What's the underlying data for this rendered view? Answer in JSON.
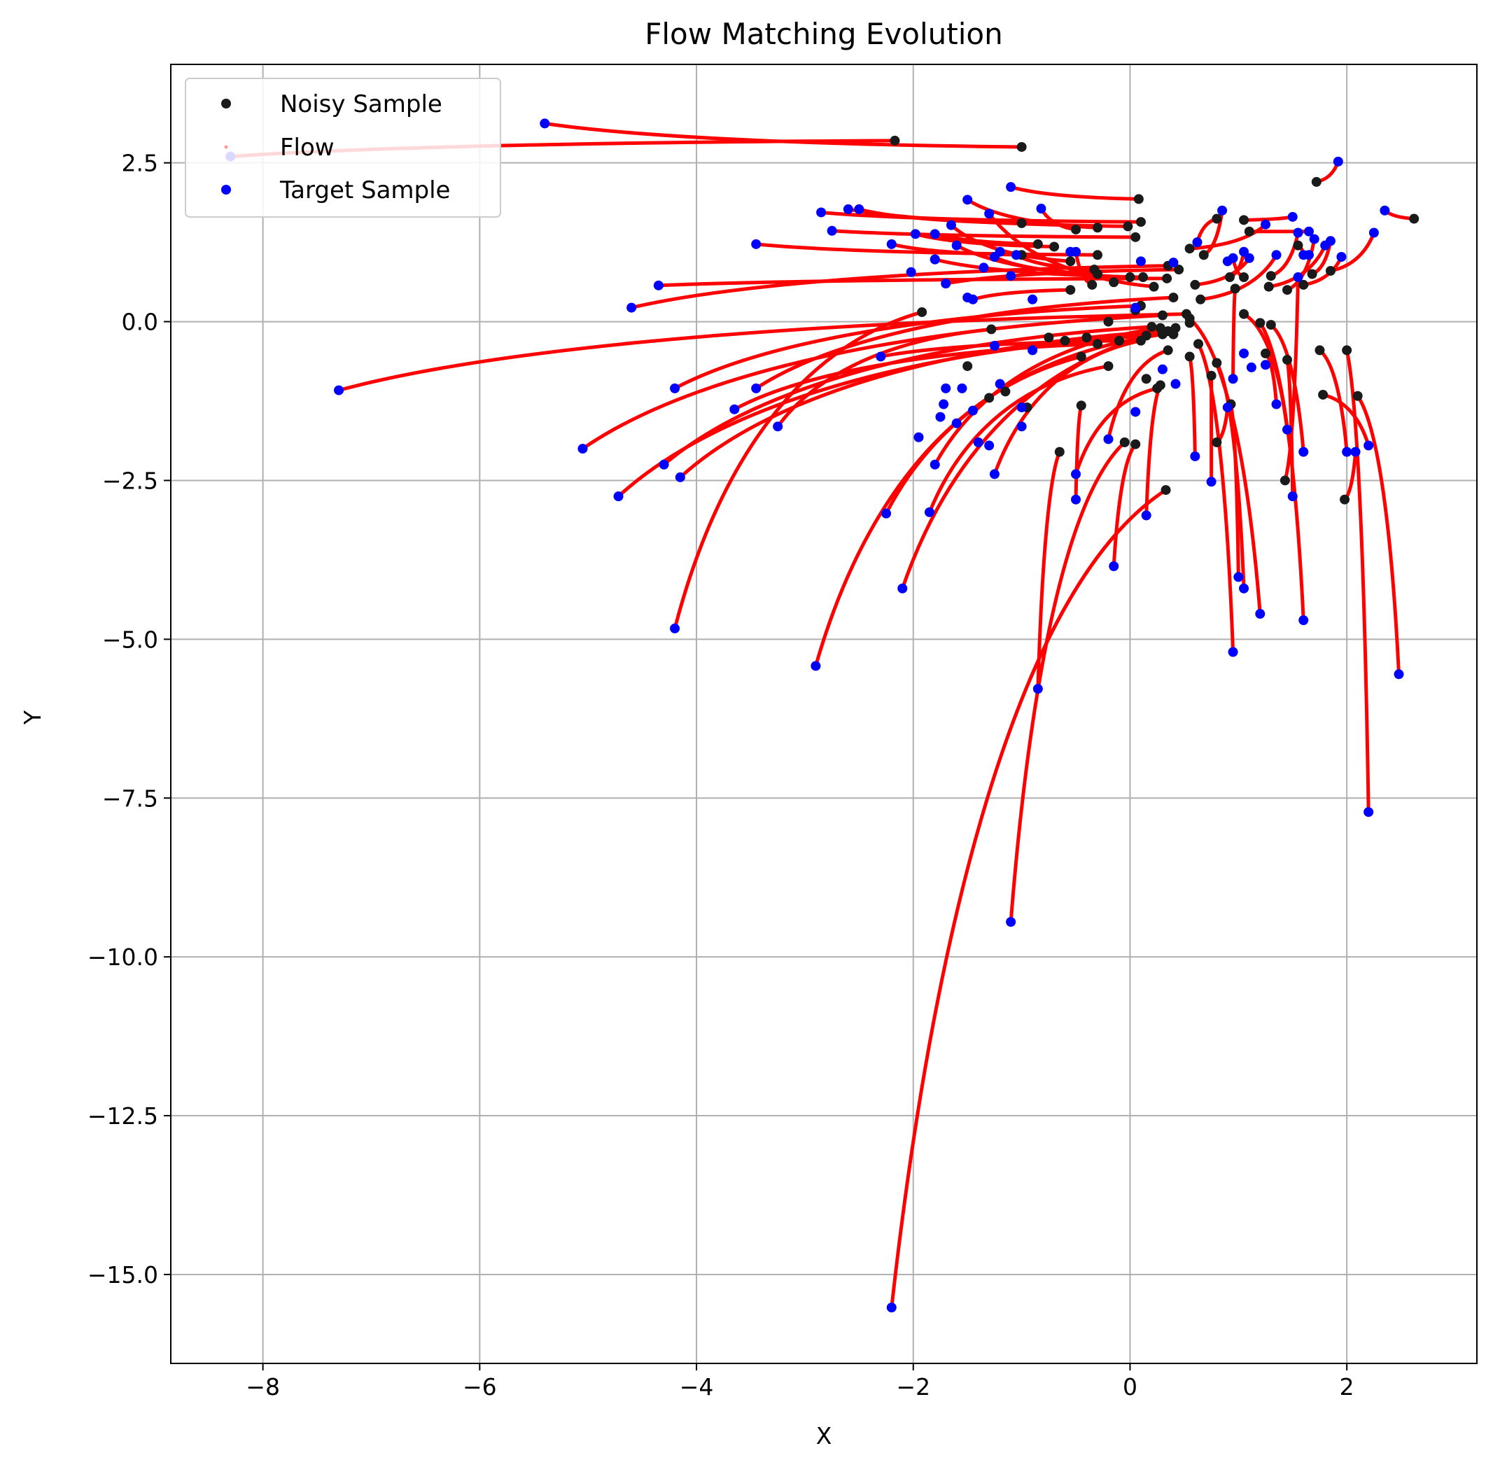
{
  "chart_data": {
    "type": "scatter",
    "title": "Flow Matching Evolution",
    "xlabel": "X",
    "ylabel": "Y",
    "xlim": [
      -8.85,
      3.2
    ],
    "ylim": [
      -16.4,
      4.05
    ],
    "xticks": [
      -8,
      -6,
      -4,
      -2,
      0,
      2
    ],
    "yticks": [
      2.5,
      0.0,
      -2.5,
      -5.0,
      -7.5,
      -10.0,
      -12.5,
      -15.0
    ],
    "xtick_labels": [
      "−8",
      "−6",
      "−4",
      "−2",
      "0",
      "2"
    ],
    "ytick_labels": [
      "2.5",
      "0.0",
      "−2.5",
      "−5.0",
      "−7.5",
      "−10.0",
      "−12.5",
      "−15.0"
    ],
    "grid": true,
    "legend": {
      "position": "top-left",
      "entries": [
        {
          "label": "Noisy Sample",
          "color": "#1a1a1a",
          "marker": "dot"
        },
        {
          "label": "Flow",
          "color": "#ff9999",
          "marker": "small-dot"
        },
        {
          "label": "Target Sample",
          "color": "#0000ff",
          "marker": "dot"
        }
      ]
    },
    "colors": {
      "noisy": "#1a1a1a",
      "flow": "#ff0000",
      "target": "#0000ff"
    },
    "flows": [
      {
        "start": [
          -2.17,
          2.85
        ],
        "end": [
          -8.3,
          2.6
        ]
      },
      {
        "start": [
          -1.0,
          2.75
        ],
        "end": [
          -5.4,
          3.12
        ]
      },
      {
        "start": [
          0.08,
          1.93
        ],
        "end": [
          -1.1,
          2.12
        ]
      },
      {
        "start": [
          0.1,
          1.57
        ],
        "end": [
          -2.85,
          1.72
        ]
      },
      {
        "start": [
          -0.02,
          1.5
        ],
        "end": [
          -2.6,
          1.77
        ]
      },
      {
        "start": [
          -1.0,
          1.55
        ],
        "end": [
          -2.5,
          1.77
        ]
      },
      {
        "start": [
          -0.3,
          1.48
        ],
        "end": [
          -1.5,
          1.92
        ]
      },
      {
        "start": [
          -0.5,
          1.45
        ],
        "end": [
          -0.82,
          1.78
        ]
      },
      {
        "start": [
          0.05,
          1.33
        ],
        "end": [
          -2.75,
          1.43
        ]
      },
      {
        "start": [
          -0.7,
          1.18
        ],
        "end": [
          -1.98,
          1.38
        ]
      },
      {
        "start": [
          -0.85,
          1.22
        ],
        "end": [
          -1.8,
          1.38
        ]
      },
      {
        "start": [
          -0.3,
          1.05
        ],
        "end": [
          -3.45,
          1.22
        ]
      },
      {
        "start": [
          -1.0,
          1.05
        ],
        "end": [
          -2.2,
          1.22
        ]
      },
      {
        "start": [
          -0.55,
          0.95
        ],
        "end": [
          -1.65,
          1.52
        ]
      },
      {
        "start": [
          -0.33,
          0.82
        ],
        "end": [
          -1.05,
          1.05
        ]
      },
      {
        "start": [
          -0.3,
          0.75
        ],
        "end": [
          -1.25,
          1.02
        ]
      },
      {
        "start": [
          0.0,
          0.7
        ],
        "end": [
          -1.6,
          1.2
        ]
      },
      {
        "start": [
          0.12,
          0.7
        ],
        "end": [
          -1.8,
          0.98
        ]
      },
      {
        "start": [
          0.22,
          0.55
        ],
        "end": [
          -1.3,
          1.7
        ]
      },
      {
        "start": [
          0.34,
          0.68
        ],
        "end": [
          -4.35,
          0.57
        ]
      },
      {
        "start": [
          0.35,
          0.88
        ],
        "end": [
          -4.6,
          0.22
        ]
      },
      {
        "start": [
          -0.35,
          0.58
        ],
        "end": [
          -0.5,
          1.1
        ]
      },
      {
        "start": [
          -0.55,
          0.5
        ],
        "end": [
          -1.45,
          0.35
        ]
      },
      {
        "start": [
          0.45,
          0.82
        ],
        "end": [
          -1.7,
          0.6
        ]
      },
      {
        "start": [
          0.52,
          0.12
        ],
        "end": [
          -7.3,
          -1.08
        ]
      },
      {
        "start": [
          -1.92,
          0.15
        ],
        "end": [
          -4.2,
          -4.83
        ]
      },
      {
        "start": [
          0.4,
          0.38
        ],
        "end": [
          -3.45,
          -1.05
        ]
      },
      {
        "start": [
          0.3,
          0.1
        ],
        "end": [
          -5.05,
          -2.0
        ]
      },
      {
        "start": [
          0.2,
          -0.08
        ],
        "end": [
          -4.3,
          -2.25
        ]
      },
      {
        "start": [
          0.15,
          -0.22
        ],
        "end": [
          -4.72,
          -2.75
        ]
      },
      {
        "start": [
          -0.3,
          -0.35
        ],
        "end": [
          -3.65,
          -1.38
        ]
      },
      {
        "start": [
          0.1,
          0.25
        ],
        "end": [
          -4.2,
          -1.05
        ]
      },
      {
        "start": [
          -0.1,
          -0.3
        ],
        "end": [
          -2.3,
          -0.55
        ]
      },
      {
        "start": [
          -1.28,
          -0.12
        ],
        "end": [
          -3.25,
          -1.65
        ]
      },
      {
        "start": [
          0.3,
          -0.15
        ],
        "end": [
          -4.15,
          -2.45
        ]
      },
      {
        "start": [
          -0.45,
          -0.55
        ],
        "end": [
          -2.9,
          -5.42
        ]
      },
      {
        "start": [
          0.3,
          -0.2
        ],
        "end": [
          -2.25,
          -3.02
        ]
      },
      {
        "start": [
          -0.2,
          -0.7
        ],
        "end": [
          -1.85,
          -3.0
        ]
      },
      {
        "start": [
          0.28,
          -0.1
        ],
        "end": [
          -1.8,
          -2.25
        ]
      },
      {
        "start": [
          0.1,
          -0.3
        ],
        "end": [
          -1.25,
          -2.4
        ]
      },
      {
        "start": [
          0.35,
          -0.15
        ],
        "end": [
          -2.1,
          -4.2
        ]
      },
      {
        "start": [
          -0.45,
          -1.32
        ],
        "end": [
          -0.5,
          -2.8
        ]
      },
      {
        "start": [
          -0.65,
          -2.05
        ],
        "end": [
          -0.85,
          -5.78
        ]
      },
      {
        "start": [
          -0.05,
          -1.9
        ],
        "end": [
          -1.1,
          -9.45
        ]
      },
      {
        "start": [
          0.33,
          -2.65
        ],
        "end": [
          -2.2,
          -15.52
        ]
      },
      {
        "start": [
          0.05,
          -1.93
        ],
        "end": [
          -0.15,
          -3.85
        ]
      },
      {
        "start": [
          0.28,
          -1.0
        ],
        "end": [
          0.15,
          -3.05
        ]
      },
      {
        "start": [
          0.25,
          -1.05
        ],
        "end": [
          -0.5,
          -2.4
        ]
      },
      {
        "start": [
          0.35,
          -0.45
        ],
        "end": [
          -0.2,
          -1.85
        ]
      },
      {
        "start": [
          0.55,
          -0.55
        ],
        "end": [
          0.6,
          -2.12
        ]
      },
      {
        "start": [
          0.63,
          -0.35
        ],
        "end": [
          0.95,
          -5.2
        ]
      },
      {
        "start": [
          0.55,
          0.05
        ],
        "end": [
          1.2,
          -4.6
        ]
      },
      {
        "start": [
          0.8,
          -0.65
        ],
        "end": [
          1.05,
          -4.2
        ]
      },
      {
        "start": [
          0.8,
          -1.9
        ],
        "end": [
          0.9,
          -1.35
        ]
      },
      {
        "start": [
          0.93,
          -1.3
        ],
        "end": [
          1.0,
          -4.02
        ]
      },
      {
        "start": [
          0.75,
          -0.85
        ],
        "end": [
          0.75,
          -2.52
        ]
      },
      {
        "start": [
          1.2,
          -0.02
        ],
        "end": [
          1.6,
          -4.7
        ]
      },
      {
        "start": [
          1.3,
          -0.05
        ],
        "end": [
          1.6,
          -2.05
        ]
      },
      {
        "start": [
          1.45,
          -0.6
        ],
        "end": [
          1.5,
          -2.75
        ]
      },
      {
        "start": [
          1.43,
          -2.5
        ],
        "end": [
          1.55,
          0.7
        ]
      },
      {
        "start": [
          2.0,
          -0.45
        ],
        "end": [
          2.2,
          -7.72
        ]
      },
      {
        "start": [
          2.1,
          -1.17
        ],
        "end": [
          2.48,
          -5.55
        ]
      },
      {
        "start": [
          1.75,
          -0.45
        ],
        "end": [
          2.0,
          -2.05
        ]
      },
      {
        "start": [
          1.78,
          -1.15
        ],
        "end": [
          2.2,
          -1.95
        ]
      },
      {
        "start": [
          1.98,
          -2.8
        ],
        "end": [
          2.08,
          -2.05
        ]
      },
      {
        "start": [
          1.05,
          0.12
        ],
        "end": [
          1.45,
          -1.7
        ]
      },
      {
        "start": [
          1.25,
          -0.5
        ],
        "end": [
          1.35,
          -1.3
        ]
      },
      {
        "start": [
          0.97,
          0.52
        ],
        "end": [
          0.95,
          -0.9
        ]
      },
      {
        "start": [
          2.62,
          1.62
        ],
        "end": [
          2.35,
          1.75
        ]
      },
      {
        "start": [
          1.72,
          2.2
        ],
        "end": [
          1.92,
          2.52
        ]
      },
      {
        "start": [
          1.85,
          0.8
        ],
        "end": [
          2.25,
          1.4
        ]
      },
      {
        "start": [
          1.68,
          0.75
        ],
        "end": [
          1.85,
          1.27
        ]
      },
      {
        "start": [
          1.55,
          1.2
        ],
        "end": [
          1.6,
          1.05
        ]
      },
      {
        "start": [
          1.1,
          1.42
        ],
        "end": [
          1.65,
          1.42
        ]
      },
      {
        "start": [
          1.05,
          1.6
        ],
        "end": [
          1.5,
          1.65
        ]
      },
      {
        "start": [
          1.05,
          0.7
        ],
        "end": [
          0.95,
          1.0
        ]
      },
      {
        "start": [
          0.8,
          1.62
        ],
        "end": [
          0.62,
          1.25
        ]
      },
      {
        "start": [
          0.68,
          1.05
        ],
        "end": [
          0.85,
          1.75
        ]
      },
      {
        "start": [
          0.55,
          1.15
        ],
        "end": [
          1.25,
          1.53
        ]
      },
      {
        "start": [
          1.28,
          0.55
        ],
        "end": [
          1.8,
          1.2
        ]
      },
      {
        "start": [
          1.3,
          0.72
        ],
        "end": [
          1.55,
          1.4
        ]
      },
      {
        "start": [
          1.45,
          0.5
        ],
        "end": [
          1.7,
          1.3
        ]
      },
      {
        "start": [
          1.6,
          0.58
        ],
        "end": [
          1.95,
          1.02
        ]
      },
      {
        "start": [
          0.6,
          0.58
        ],
        "end": [
          1.1,
          1.0
        ]
      },
      {
        "start": [
          0.65,
          0.35
        ],
        "end": [
          1.35,
          1.05
        ]
      },
      {
        "start": [
          0.92,
          0.7
        ],
        "end": [
          1.05,
          1.1
        ]
      }
    ],
    "extra_noisy": [
      [
        -0.15,
        0.62
      ],
      [
        0.4,
        -0.2
      ],
      [
        -0.2,
        0.0
      ],
      [
        0.05,
        0.18
      ],
      [
        -0.6,
        -0.3
      ],
      [
        -0.75,
        -0.25
      ],
      [
        -1.3,
        -1.2
      ],
      [
        -1.15,
        -1.1
      ],
      [
        -1.5,
        -0.7
      ],
      [
        -0.95,
        -1.35
      ],
      [
        0.15,
        -0.9
      ],
      [
        0.42,
        -0.1
      ],
      [
        0.55,
        -0.02
      ],
      [
        -0.4,
        -0.25
      ]
    ],
    "extra_target": [
      [
        -1.7,
        -1.05
      ],
      [
        -1.6,
        -1.6
      ],
      [
        -1.55,
        -1.05
      ],
      [
        -1.45,
        -1.4
      ],
      [
        -1.4,
        -1.9
      ],
      [
        -1.3,
        -1.95
      ],
      [
        -1.2,
        -0.98
      ],
      [
        -1.0,
        -1.35
      ],
      [
        -0.9,
        -0.45
      ],
      [
        -1.0,
        -1.65
      ],
      [
        -1.25,
        -0.38
      ],
      [
        -1.75,
        -1.5
      ],
      [
        -1.72,
        -1.3
      ],
      [
        -1.95,
        -1.82
      ],
      [
        -2.02,
        0.78
      ],
      [
        -1.8,
        0.98
      ],
      [
        -1.5,
        0.38
      ],
      [
        -1.35,
        0.85
      ],
      [
        -1.2,
        1.1
      ],
      [
        -1.1,
        0.72
      ],
      [
        -0.9,
        0.35
      ],
      [
        0.05,
        0.22
      ],
      [
        0.4,
        0.93
      ],
      [
        0.9,
        0.95
      ],
      [
        1.12,
        -0.72
      ],
      [
        1.25,
        -0.68
      ],
      [
        1.05,
        -0.5
      ],
      [
        0.3,
        -0.75
      ],
      [
        0.42,
        -0.98
      ],
      [
        0.05,
        -1.42
      ],
      [
        -0.55,
        1.1
      ],
      [
        0.1,
        0.95
      ],
      [
        1.65,
        1.05
      ]
    ]
  }
}
